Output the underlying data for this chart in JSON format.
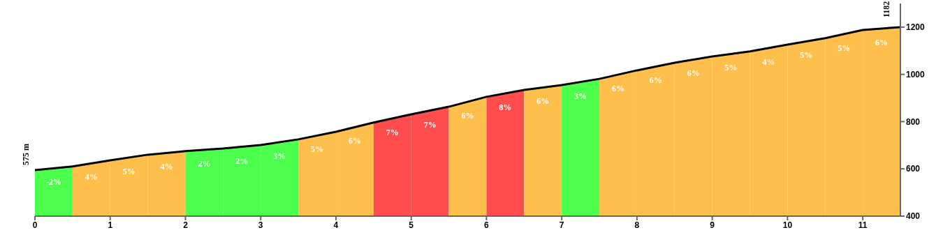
{
  "chart_data": {
    "type": "line",
    "x": [
      0,
      0.5,
      1,
      1.5,
      2,
      2.5,
      3,
      3.5,
      4,
      4.5,
      5,
      5.5,
      6,
      6.5,
      7,
      7.5,
      8,
      8.5,
      9,
      9.5,
      10,
      10.5,
      11,
      11.5
    ],
    "series": [
      {
        "color": "#000000",
        "values": [
          595,
          610,
          636,
          660,
          675,
          686,
          701,
          725,
          757,
          796,
          831,
          863,
          905,
          934,
          955,
          981,
          1017,
          1049,
          1076,
          1097,
          1126,
          1153,
          1188,
          1200
        ]
      }
    ],
    "bands": [
      {
        "axis": "x",
        "from": 0,
        "to": 0.5,
        "label": "-2%",
        "color": "#4cff4c"
      },
      {
        "axis": "x",
        "from": 0.5,
        "to": 1,
        "label": "4%",
        "color": "#ffbf4c"
      },
      {
        "axis": "x",
        "from": 1,
        "to": 1.5,
        "label": "5%",
        "color": "#ffbf4c"
      },
      {
        "axis": "x",
        "from": 1.5,
        "to": 2,
        "label": "4%",
        "color": "#ffbf4c"
      },
      {
        "axis": "x",
        "from": 2,
        "to": 2.5,
        "label": "2%",
        "color": "#4cff4c"
      },
      {
        "axis": "x",
        "from": 2.5,
        "to": 3,
        "label": "2%",
        "color": "#4cff4c"
      },
      {
        "axis": "x",
        "from": 3,
        "to": 3.5,
        "label": "3%",
        "color": "#4cff4c"
      },
      {
        "axis": "x",
        "from": 3.5,
        "to": 4,
        "label": "5%",
        "color": "#ffbf4c"
      },
      {
        "axis": "x",
        "from": 4,
        "to": 4.5,
        "label": "6%",
        "color": "#ffbf4c"
      },
      {
        "axis": "x",
        "from": 4.5,
        "to": 5,
        "label": "7%",
        "color": "#ff4c4c"
      },
      {
        "axis": "x",
        "from": 5,
        "to": 5.5,
        "label": "7%",
        "color": "#ff4c4c"
      },
      {
        "axis": "x",
        "from": 5.5,
        "to": 6,
        "label": "6%",
        "color": "#ffbf4c"
      },
      {
        "axis": "x",
        "from": 6,
        "to": 6.5,
        "label": "8%",
        "color": "#ff4c4c"
      },
      {
        "axis": "x",
        "from": 6.5,
        "to": 7,
        "label": "6%",
        "color": "#ffbf4c"
      },
      {
        "axis": "x",
        "from": 7,
        "to": 7.5,
        "label": "3%",
        "color": "#4cff4c"
      },
      {
        "axis": "x",
        "from": 7.5,
        "to": 8,
        "label": "6%",
        "color": "#ffbf4c"
      },
      {
        "axis": "x",
        "from": 8,
        "to": 8.5,
        "label": "6%",
        "color": "#ffbf4c"
      },
      {
        "axis": "x",
        "from": 8.5,
        "to": 9,
        "label": "6%",
        "color": "#ffbf4c"
      },
      {
        "axis": "x",
        "from": 9,
        "to": 9.5,
        "label": "5%",
        "color": "#ffbf4c"
      },
      {
        "axis": "x",
        "from": 9.5,
        "to": 10,
        "label": "4%",
        "color": "#ffbf4c"
      },
      {
        "axis": "x",
        "from": 10,
        "to": 10.5,
        "label": "5%",
        "color": "#ffbf4c"
      },
      {
        "axis": "x",
        "from": 10.5,
        "to": 11,
        "label": "5%",
        "color": "#ffbf4c"
      },
      {
        "axis": "x",
        "from": 11,
        "to": 11.5,
        "label": "6%",
        "color": "#ffbf4c"
      }
    ],
    "xlim": [
      0,
      11.5
    ],
    "xticks": [
      0,
      1,
      2,
      3,
      4,
      5,
      6,
      7,
      8,
      9,
      10,
      11
    ],
    "ylim": [
      400,
      1300
    ],
    "yticks": [
      400,
      600,
      800,
      1000,
      1200
    ],
    "annotations": [
      "575 m",
      "1182"
    ]
  }
}
